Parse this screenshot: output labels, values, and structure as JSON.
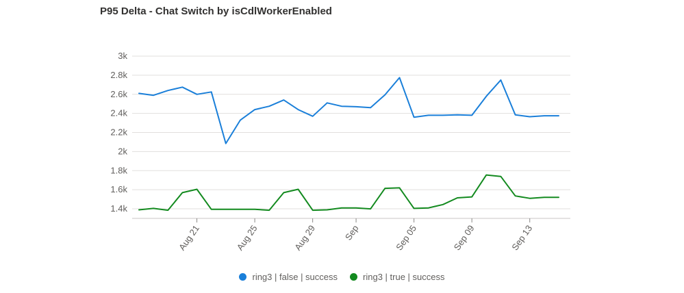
{
  "title": "P95 Delta - Chat Switch by isCdlWorkerEnabled",
  "chart_data": {
    "type": "line",
    "title": "P95 Delta - Chat Switch by isCdlWorkerEnabled",
    "xlabel": "",
    "ylabel": "",
    "x": [
      "Aug 17",
      "Aug 18",
      "Aug 19",
      "Aug 20",
      "Aug 21",
      "Aug 22",
      "Aug 23",
      "Aug 24",
      "Aug 25",
      "Aug 26",
      "Aug 27",
      "Aug 28",
      "Aug 29",
      "Aug 30",
      "Aug 31",
      "Sep 01",
      "Sep 02",
      "Sep 03",
      "Sep 04",
      "Sep 05",
      "Sep 06",
      "Sep 07",
      "Sep 08",
      "Sep 09",
      "Sep 10",
      "Sep 11",
      "Sep 12",
      "Sep 13",
      "Sep 14",
      "Sep 15"
    ],
    "x_tick_labels": [
      {
        "index": 4,
        "label": "Aug 21"
      },
      {
        "index": 8,
        "label": "Aug 25"
      },
      {
        "index": 12,
        "label": "Aug 29"
      },
      {
        "index": 15,
        "label": "Sep"
      },
      {
        "index": 19,
        "label": "Sep 05"
      },
      {
        "index": 23,
        "label": "Sep 09"
      },
      {
        "index": 27,
        "label": "Sep 13"
      }
    ],
    "y_ticks": [
      1400,
      1600,
      1800,
      2000,
      2200,
      2400,
      2600,
      2800,
      3000
    ],
    "y_tick_labels": [
      "1.4k",
      "1.6k",
      "1.8k",
      "2k",
      "2.2k",
      "2.4k",
      "2.6k",
      "2.8k",
      "3k"
    ],
    "ylim": [
      1300,
      3000
    ],
    "grid": true,
    "legend_position": "bottom",
    "series": [
      {
        "name": "ring3 | false | success",
        "color": "#1a7fd9",
        "values": [
          2610,
          2590,
          2640,
          2675,
          2600,
          2625,
          2085,
          2330,
          2440,
          2475,
          2540,
          2440,
          2370,
          2510,
          2475,
          2470,
          2460,
          2595,
          2775,
          2360,
          2380,
          2380,
          2385,
          2380,
          2580,
          2750,
          2385,
          2365,
          2375,
          2375
        ]
      },
      {
        "name": "ring3 | true | success",
        "color": "#138a1f",
        "values": [
          1390,
          1405,
          1385,
          1570,
          1605,
          1395,
          1395,
          1395,
          1395,
          1385,
          1570,
          1605,
          1385,
          1390,
          1410,
          1410,
          1400,
          1615,
          1620,
          1405,
          1410,
          1445,
          1515,
          1525,
          1755,
          1740,
          1535,
          1510,
          1520,
          1520
        ]
      }
    ]
  }
}
